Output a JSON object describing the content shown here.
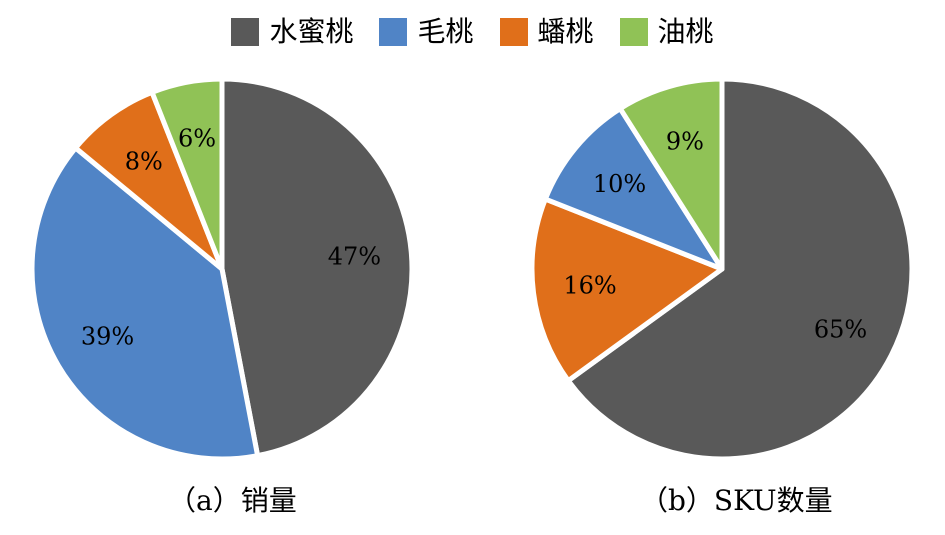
{
  "legend": [
    {
      "label": "水蜜桃",
      "color": "#595959"
    },
    {
      "label": "毛桃",
      "color": "#5084c6"
    },
    {
      "label": "蟠桃",
      "color": "#e06f1a"
    },
    {
      "label": "油桃",
      "color": "#90c256"
    }
  ],
  "chart_data": [
    {
      "type": "pie",
      "title": "（a）销量",
      "series": [
        {
          "name": "水蜜桃",
          "value": 47,
          "label": "47%",
          "color": "#595959"
        },
        {
          "name": "毛桃",
          "value": 39,
          "label": "39%",
          "color": "#5084c6"
        },
        {
          "name": "蟠桃",
          "value": 8,
          "label": "8%",
          "color": "#e06f1a"
        },
        {
          "name": "油桃",
          "value": 6,
          "label": "6%",
          "color": "#90c256"
        }
      ]
    },
    {
      "type": "pie",
      "title": "（b）SKU数量",
      "series": [
        {
          "name": "水蜜桃",
          "value": 65,
          "label": "65%",
          "color": "#595959"
        },
        {
          "name": "蟠桃",
          "value": 16,
          "label": "16%",
          "color": "#e06f1a"
        },
        {
          "name": "毛桃",
          "value": 10,
          "label": "10%",
          "color": "#5084c6"
        },
        {
          "name": "油桃",
          "value": 9,
          "label": "9%",
          "color": "#90c256"
        }
      ]
    }
  ]
}
